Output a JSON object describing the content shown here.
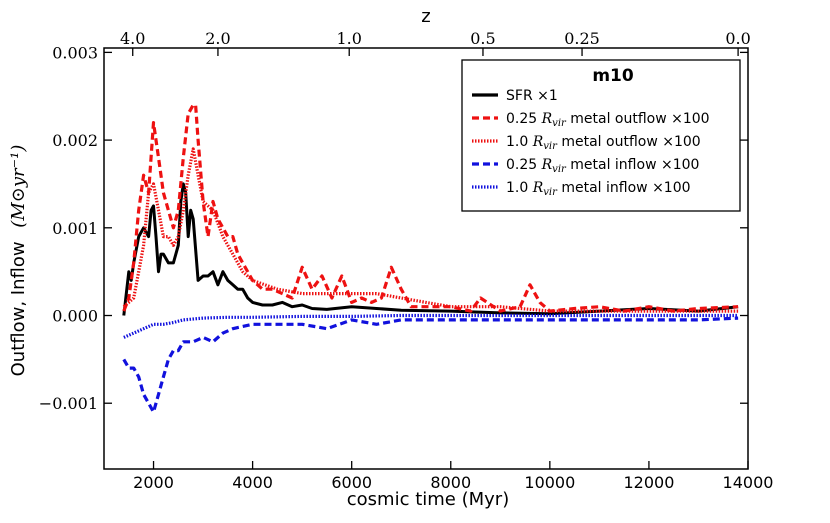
{
  "chart_data": {
    "type": "line",
    "title": "m10",
    "xlabel": "cosmic time (Myr)",
    "ylabel_main": "Outflow, Inflow",
    "ylabel_units": "(M⊙yr⁻¹)",
    "top_axis_label": "z",
    "xlim": [
      1000,
      14000
    ],
    "ylim": [
      -0.00175,
      0.00305
    ],
    "x_ticks": [
      2000,
      4000,
      6000,
      8000,
      10000,
      12000,
      14000
    ],
    "x_tick_labels": [
      "2000",
      "4000",
      "6000",
      "8000",
      "10000",
      "12000",
      "14000"
    ],
    "y_ticks": [
      -0.001,
      0.0,
      0.001,
      0.002,
      0.003
    ],
    "y_tick_labels": [
      "−0.001",
      "0.000",
      "0.001",
      "0.002",
      "0.003"
    ],
    "top_ticks": [
      {
        "label": "4.0",
        "time": 1580
      },
      {
        "label": "2.0",
        "time": 3300
      },
      {
        "label": "1.0",
        "time": 5950
      },
      {
        "label": "0.5",
        "time": 8650
      },
      {
        "label": "0.25",
        "time": 10650
      },
      {
        "label": "0.0",
        "time": 13800
      }
    ],
    "legend_position": "top-right",
    "series": [
      {
        "name": "SFR ×1",
        "legend_parts": [
          "SFR ×1"
        ],
        "color": "#000000",
        "style": "solid",
        "x": [
          1400,
          1500,
          1550,
          1600,
          1700,
          1800,
          1900,
          1950,
          2000,
          2050,
          2100,
          2150,
          2200,
          2300,
          2400,
          2500,
          2550,
          2600,
          2650,
          2700,
          2750,
          2800,
          2900,
          3000,
          3100,
          3200,
          3300,
          3400,
          3500,
          3600,
          3700,
          3800,
          3900,
          4000,
          4200,
          4400,
          4600,
          4800,
          5000,
          5200,
          5500,
          6000,
          6500,
          7000,
          8000,
          9000,
          10000,
          11000,
          12000,
          13000,
          13800
        ],
        "y": [
          0.0,
          0.0005,
          0.0004,
          0.0006,
          0.0009,
          0.001,
          0.0009,
          0.0012,
          0.00125,
          0.0009,
          0.0005,
          0.0007,
          0.0007,
          0.0006,
          0.0006,
          0.0008,
          0.0013,
          0.0015,
          0.0014,
          0.0009,
          0.0012,
          0.0011,
          0.0004,
          0.00045,
          0.00045,
          0.0005,
          0.00035,
          0.0005,
          0.0004,
          0.00035,
          0.0003,
          0.0003,
          0.0002,
          0.00015,
          0.00012,
          0.00012,
          0.00015,
          0.0001,
          0.00012,
          8e-05,
          7e-05,
          0.0001,
          8e-05,
          6e-05,
          5e-05,
          3e-05,
          2e-05,
          5e-05,
          8e-05,
          5e-05,
          0.0001
        ]
      },
      {
        "name": "0.25 Rvir metal outflow ×100",
        "legend_parts": [
          "0.25 ",
          "R",
          "vir",
          " metal outflow  ×100"
        ],
        "color": "#ee1111",
        "style": "dashed",
        "x": [
          1400,
          1500,
          1600,
          1700,
          1800,
          1900,
          2000,
          2100,
          2200,
          2300,
          2400,
          2500,
          2600,
          2700,
          2800,
          2850,
          2900,
          3000,
          3100,
          3200,
          3300,
          3400,
          3500,
          3600,
          3700,
          3800,
          4000,
          4200,
          4400,
          4600,
          4800,
          5000,
          5200,
          5400,
          5600,
          5800,
          6000,
          6200,
          6400,
          6600,
          6800,
          7000,
          7200,
          7500,
          8000,
          8400,
          8600,
          9000,
          9400,
          9600,
          9800,
          10000,
          10500,
          11000,
          11500,
          12000,
          12500,
          13000,
          13800
        ],
        "y": [
          5e-05,
          0.0002,
          0.0006,
          0.0012,
          0.0016,
          0.0014,
          0.0022,
          0.0018,
          0.0014,
          0.0012,
          0.001,
          0.0012,
          0.0018,
          0.0023,
          0.0024,
          0.0024,
          0.002,
          0.0013,
          0.0009,
          0.0013,
          0.0011,
          0.001,
          0.0009,
          0.0009,
          0.0007,
          0.0006,
          0.0004,
          0.0003,
          0.0003,
          0.00025,
          0.0002,
          0.00055,
          0.0003,
          0.00045,
          0.0002,
          0.00045,
          0.00015,
          0.0002,
          0.00015,
          0.0002,
          0.00055,
          0.0003,
          0.0001,
          0.0001,
          0.0001,
          5e-05,
          0.0002,
          5e-05,
          0.0001,
          0.00035,
          0.00015,
          5e-05,
          8e-05,
          0.0001,
          5e-05,
          0.0001,
          5e-05,
          8e-05,
          0.0001
        ]
      },
      {
        "name": "1.0 Rvir metal outflow ×100",
        "legend_parts": [
          "1.0 ",
          "R",
          "vir",
          " metal outflow ×100"
        ],
        "color": "#ee1111",
        "style": "dotted",
        "x": [
          1400,
          1600,
          1700,
          1800,
          1900,
          2000,
          2100,
          2200,
          2300,
          2400,
          2500,
          2600,
          2700,
          2800,
          2900,
          3000,
          3200,
          3400,
          3600,
          3800,
          4000,
          4500,
          5000,
          5500,
          6000,
          6500,
          7000,
          7500,
          8000,
          9000,
          10000,
          11000,
          12000,
          13000,
          13800
        ],
        "y": [
          0.0001,
          0.0002,
          0.0005,
          0.0008,
          0.0014,
          0.0015,
          0.0012,
          0.0009,
          0.0009,
          0.0008,
          0.0009,
          0.0012,
          0.0016,
          0.0019,
          0.0016,
          0.0013,
          0.0012,
          0.0009,
          0.0007,
          0.0005,
          0.0004,
          0.0003,
          0.00025,
          0.00025,
          0.00025,
          0.00025,
          0.0002,
          0.00015,
          0.0001,
          0.0001,
          5e-05,
          5e-05,
          5e-05,
          5e-05,
          5e-05
        ]
      },
      {
        "name": "0.25 Rvir metal inflow ×100",
        "legend_parts": [
          "0.25 ",
          "R",
          "vir",
          " metal inflow ×100"
        ],
        "color": "#1111dd",
        "style": "dashed",
        "x": [
          1400,
          1500,
          1600,
          1700,
          1800,
          1900,
          2000,
          2100,
          2200,
          2300,
          2400,
          2500,
          2600,
          2800,
          3000,
          3200,
          3400,
          3600,
          4000,
          4500,
          5000,
          5500,
          6000,
          6500,
          7000,
          8000,
          9000,
          10000,
          11000,
          12000,
          13000,
          13800
        ],
        "y": [
          -0.0005,
          -0.0006,
          -0.0006,
          -0.0007,
          -0.0009,
          -0.001,
          -0.0011,
          -0.0009,
          -0.0007,
          -0.0005,
          -0.0004,
          -0.0004,
          -0.0003,
          -0.0003,
          -0.00025,
          -0.0003,
          -0.0002,
          -0.00015,
          -0.0001,
          -0.0001,
          -0.0001,
          -0.00015,
          -5e-05,
          -0.0001,
          -5e-05,
          -5e-05,
          -5e-05,
          -5e-05,
          -5e-05,
          -5e-05,
          -5e-05,
          -3e-05
        ]
      },
      {
        "name": "1.0 Rvir metal inflow ×100",
        "legend_parts": [
          "1.0 ",
          "R",
          "vir",
          " metal inflow  ×100"
        ],
        "color": "#1111dd",
        "style": "dotted",
        "x": [
          1400,
          1600,
          1800,
          2000,
          2200,
          2400,
          2600,
          2800,
          3000,
          3500,
          4000,
          5000,
          6000,
          7000,
          8000,
          9000,
          10000,
          11000,
          12000,
          13000,
          13800
        ],
        "y": [
          -0.00025,
          -0.0002,
          -0.00015,
          -0.0001,
          -0.0001,
          -8e-05,
          -5e-05,
          -4e-05,
          -3e-05,
          -2e-05,
          -2e-05,
          -1e-05,
          -1e-05,
          0.0,
          0.0,
          0.0,
          0.0,
          0.0,
          0.0,
          0.0,
          0.0
        ]
      }
    ]
  }
}
